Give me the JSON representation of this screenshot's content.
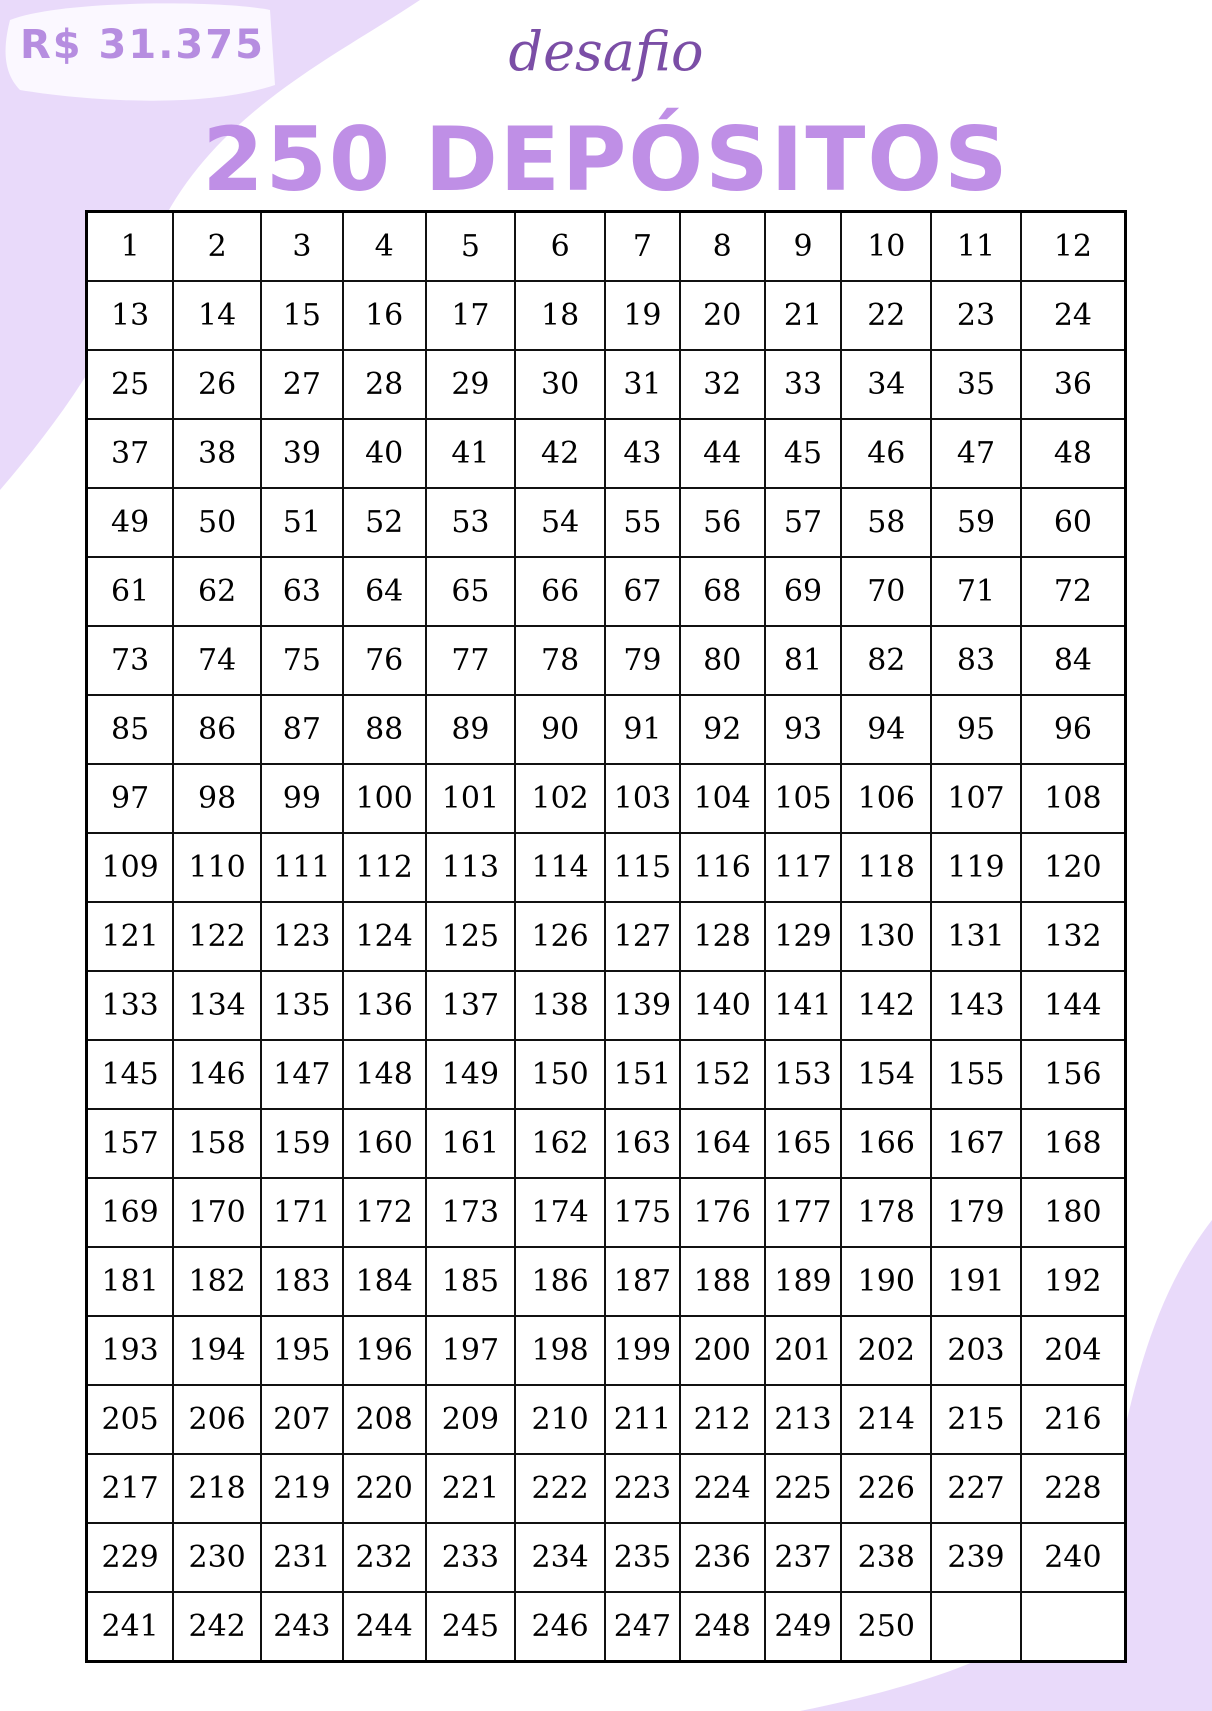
{
  "header": {
    "amount": "R$ 31.375",
    "subtitle": "desafio",
    "title": "250 DEPÓSITOS"
  },
  "colors": {
    "title": "#bf8fe6",
    "subtitle": "#7b4ea6",
    "blob": "#e9dafa"
  },
  "grid": {
    "rows": [
      [
        "1",
        "2",
        "3",
        "4",
        "5",
        "6",
        "7",
        "8",
        "9",
        "10",
        "11",
        "12"
      ],
      [
        "13",
        "14",
        "15",
        "16",
        "17",
        "18",
        "19",
        "20",
        "21",
        "22",
        "23",
        "24"
      ],
      [
        "25",
        "26",
        "27",
        "28",
        "29",
        "30",
        "31",
        "32",
        "33",
        "34",
        "35",
        "36"
      ],
      [
        "37",
        "38",
        "39",
        "40",
        "41",
        "42",
        "43",
        "44",
        "45",
        "46",
        "47",
        "48"
      ],
      [
        "49",
        "50",
        "51",
        "52",
        "53",
        "54",
        "55",
        "56",
        "57",
        "58",
        "59",
        "60"
      ],
      [
        "61",
        "62",
        "63",
        "64",
        "65",
        "66",
        "67",
        "68",
        "69",
        "70",
        "71",
        "72"
      ],
      [
        "73",
        "74",
        "75",
        "76",
        "77",
        "78",
        "79",
        "80",
        "81",
        "82",
        "83",
        "84"
      ],
      [
        "85",
        "86",
        "87",
        "88",
        "89",
        "90",
        "91",
        "92",
        "93",
        "94",
        "95",
        "96"
      ],
      [
        "97",
        "98",
        "99",
        "100",
        "101",
        "102",
        "103",
        "104",
        "105",
        "106",
        "107",
        "108"
      ],
      [
        "109",
        "110",
        "111",
        "112",
        "113",
        "114",
        "115",
        "116",
        "117",
        "118",
        "119",
        "120"
      ],
      [
        "121",
        "122",
        "123",
        "124",
        "125",
        "126",
        "127",
        "128",
        "129",
        "130",
        "131",
        "132"
      ],
      [
        "133",
        "134",
        "135",
        "136",
        "137",
        "138",
        "139",
        "140",
        "141",
        "142",
        "143",
        "144"
      ],
      [
        "145",
        "146",
        "147",
        "148",
        "149",
        "150",
        "151",
        "152",
        "153",
        "154",
        "155",
        "156"
      ],
      [
        "157",
        "158",
        "159",
        "160",
        "161",
        "162",
        "163",
        "164",
        "165",
        "166",
        "167",
        "168"
      ],
      [
        "169",
        "170",
        "171",
        "172",
        "173",
        "174",
        "175",
        "176",
        "177",
        "178",
        "179",
        "180"
      ],
      [
        "181",
        "182",
        "183",
        "184",
        "185",
        "186",
        "187",
        "188",
        "189",
        "190",
        "191",
        "192"
      ],
      [
        "193",
        "194",
        "195",
        "196",
        "197",
        "198",
        "199",
        "200",
        "201",
        "202",
        "203",
        "204"
      ],
      [
        "205",
        "206",
        "207",
        "208",
        "209",
        "210",
        "211",
        "212",
        "213",
        "214",
        "215",
        "216"
      ],
      [
        "217",
        "218",
        "219",
        "220",
        "221",
        "222",
        "223",
        "224",
        "225",
        "226",
        "227",
        "228"
      ],
      [
        "229",
        "230",
        "231",
        "232",
        "233",
        "234",
        "235",
        "236",
        "237",
        "238",
        "239",
        "240"
      ],
      [
        "241",
        "242",
        "243",
        "244",
        "245",
        "246",
        "247",
        "248",
        "249",
        "250",
        "",
        ""
      ]
    ]
  }
}
